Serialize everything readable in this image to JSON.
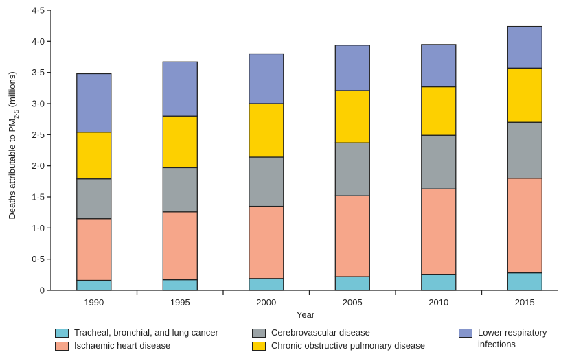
{
  "chart_data": {
    "type": "bar",
    "stacked": true,
    "title": "",
    "xlabel": "Year",
    "ylabel_prefix": "Deaths attributable to PM",
    "ylabel_subscript": "2·5",
    "ylabel_suffix": " (millions)",
    "ylim": [
      0,
      4.5
    ],
    "yticks": [
      "0",
      "0·5",
      "1·0",
      "1·5",
      "2·0",
      "2·5",
      "3·0",
      "3·5",
      "4·0",
      "4·5"
    ],
    "ytick_values": [
      0,
      0.5,
      1.0,
      1.5,
      2.0,
      2.5,
      3.0,
      3.5,
      4.0,
      4.5
    ],
    "categories": [
      "1990",
      "1995",
      "2000",
      "2005",
      "2010",
      "2015"
    ],
    "series": [
      {
        "name": "Tracheal, bronchial, and lung cancer",
        "color": "#74c5d6",
        "values": [
          0.16,
          0.17,
          0.19,
          0.22,
          0.25,
          0.28
        ]
      },
      {
        "name": "Ischaemic heart disease",
        "color": "#f6a68a",
        "values": [
          0.99,
          1.09,
          1.16,
          1.3,
          1.38,
          1.52
        ]
      },
      {
        "name": "Cerebrovascular disease",
        "color": "#9ba3a6",
        "values": [
          0.64,
          0.71,
          0.79,
          0.85,
          0.86,
          0.9
        ]
      },
      {
        "name": "Chronic obstructive pulmonary disease",
        "color": "#fdd000",
        "values": [
          0.75,
          0.83,
          0.86,
          0.84,
          0.78,
          0.87
        ]
      },
      {
        "name": "Lower respiratory infections",
        "color": "#8595cb",
        "values": [
          0.94,
          0.87,
          0.8,
          0.73,
          0.68,
          0.67
        ]
      }
    ],
    "legend": {
      "placement": "bottom",
      "items": [
        {
          "label": "Tracheal, bronchial, and lung cancer",
          "color": "#74c5d6"
        },
        {
          "label": "Ischaemic heart disease",
          "color": "#f6a68a"
        },
        {
          "label": "Cerebrovascular disease",
          "color": "#9ba3a6"
        },
        {
          "label": "Chronic obstructive pulmonary disease",
          "color": "#fdd000"
        },
        {
          "label": "Lower respiratory infections",
          "color": "#8595cb"
        }
      ]
    },
    "grid": false
  }
}
